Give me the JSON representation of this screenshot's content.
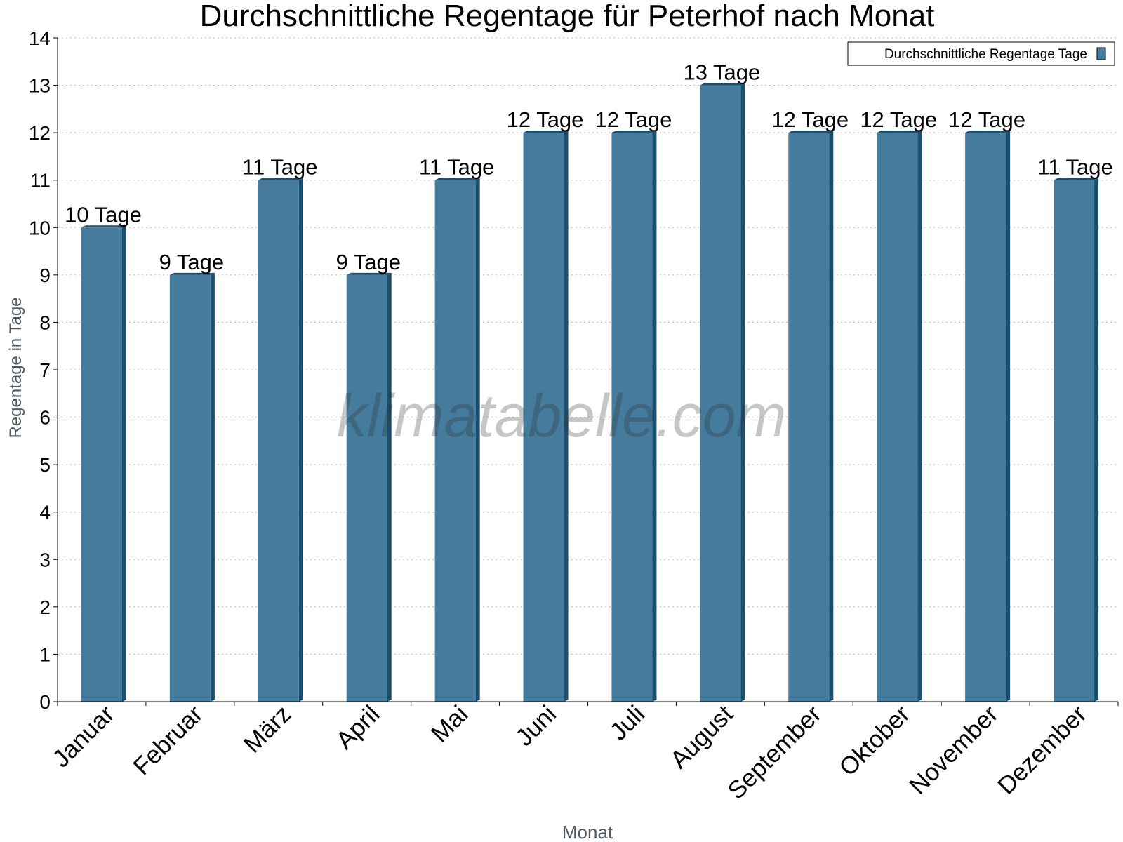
{
  "chart_data": {
    "type": "bar",
    "title": "Durchschnittliche Regentage für Peterhof nach Monat",
    "xlabel": "Monat",
    "ylabel": "Regentage in Tage",
    "ylim": [
      0,
      14
    ],
    "yticks": [
      0,
      1,
      2,
      3,
      4,
      5,
      6,
      7,
      8,
      9,
      10,
      11,
      12,
      13,
      14
    ],
    "grid": true,
    "legend_position": "top-right",
    "watermark": "klimatabelle.com",
    "categories": [
      "Januar",
      "Februar",
      "März",
      "April",
      "Mai",
      "Juni",
      "Juli",
      "August",
      "September",
      "Oktober",
      "November",
      "Dezember"
    ],
    "series": [
      {
        "name": "Durchschnittliche Regentage Tage",
        "values": [
          10,
          9,
          11,
          9,
          11,
          12,
          12,
          13,
          12,
          12,
          12,
          11
        ],
        "labels": [
          "10 Tage",
          "9 Tage",
          "11 Tage",
          "9 Tage",
          "11 Tage",
          "12 Tage",
          "12 Tage",
          "13 Tage",
          "12 Tage",
          "12 Tage",
          "12 Tage",
          "11 Tage"
        ],
        "color": "#457b9d",
        "side_color": "#1d4e6e"
      }
    ]
  }
}
